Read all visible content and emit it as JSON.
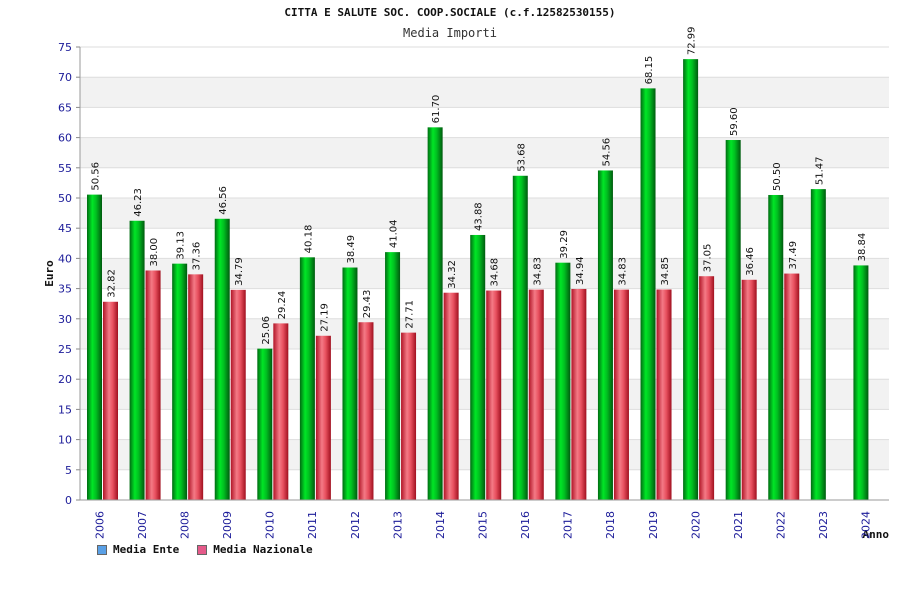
{
  "title": "CITTA E SALUTE SOC. COOP.SOCIALE (c.f.12582530155)",
  "subtitle": "Media Importi",
  "colors": {
    "ente": "#00b81e",
    "nazionale": "#ee4b5b",
    "legend_ente": "#5aa0e6",
    "legend_nazionale": "#e55a8a",
    "grid_band": "#f2f2f2",
    "axis_text": "#1b1b99"
  },
  "legend": {
    "ente_label": "Media Ente",
    "nazionale_label": "Media Nazionale"
  },
  "chart_data": {
    "type": "bar",
    "title": "Media Importi",
    "xlabel": "Anno",
    "ylabel": "Euro",
    "ylim": [
      0,
      75
    ],
    "yticks": [
      0,
      5,
      10,
      15,
      20,
      25,
      30,
      35,
      40,
      45,
      50,
      55,
      60,
      65,
      70,
      75
    ],
    "categories": [
      "2006",
      "2007",
      "2008",
      "2009",
      "2010",
      "2011",
      "2012",
      "2013",
      "2014",
      "2015",
      "2016",
      "2017",
      "2018",
      "2019",
      "2020",
      "2021",
      "2022",
      "2023",
      "2024"
    ],
    "series": [
      {
        "name": "Media Ente",
        "values": [
          50.56,
          46.23,
          39.13,
          46.56,
          25.06,
          40.18,
          38.49,
          41.04,
          61.7,
          43.88,
          53.68,
          39.29,
          54.56,
          68.15,
          72.99,
          59.6,
          50.5,
          51.47,
          38.84
        ],
        "labels": [
          "50.56",
          "46.23",
          "39.13",
          "46.56",
          "25.06",
          "40.18",
          "38.49",
          "41.04",
          "61.70",
          "43.88",
          "53.68",
          "39.29",
          "54.56",
          "68.15",
          "72.99",
          "59.60",
          "50.50",
          "51.47",
          "38.84"
        ]
      },
      {
        "name": "Media Nazionale",
        "values": [
          32.82,
          38.0,
          37.36,
          34.79,
          29.24,
          27.19,
          29.43,
          27.71,
          34.32,
          34.68,
          34.83,
          34.94,
          34.83,
          34.85,
          37.05,
          36.46,
          37.49,
          null,
          null
        ],
        "labels": [
          "32.82",
          "38.00",
          "37.36",
          "34.79",
          "29.24",
          "27.19",
          "29.43",
          "27.71",
          "34.32",
          "34.68",
          "34.83",
          "34.94",
          "34.83",
          "34.85",
          "37.05",
          "36.46",
          "37.49",
          null,
          null
        ]
      }
    ]
  }
}
